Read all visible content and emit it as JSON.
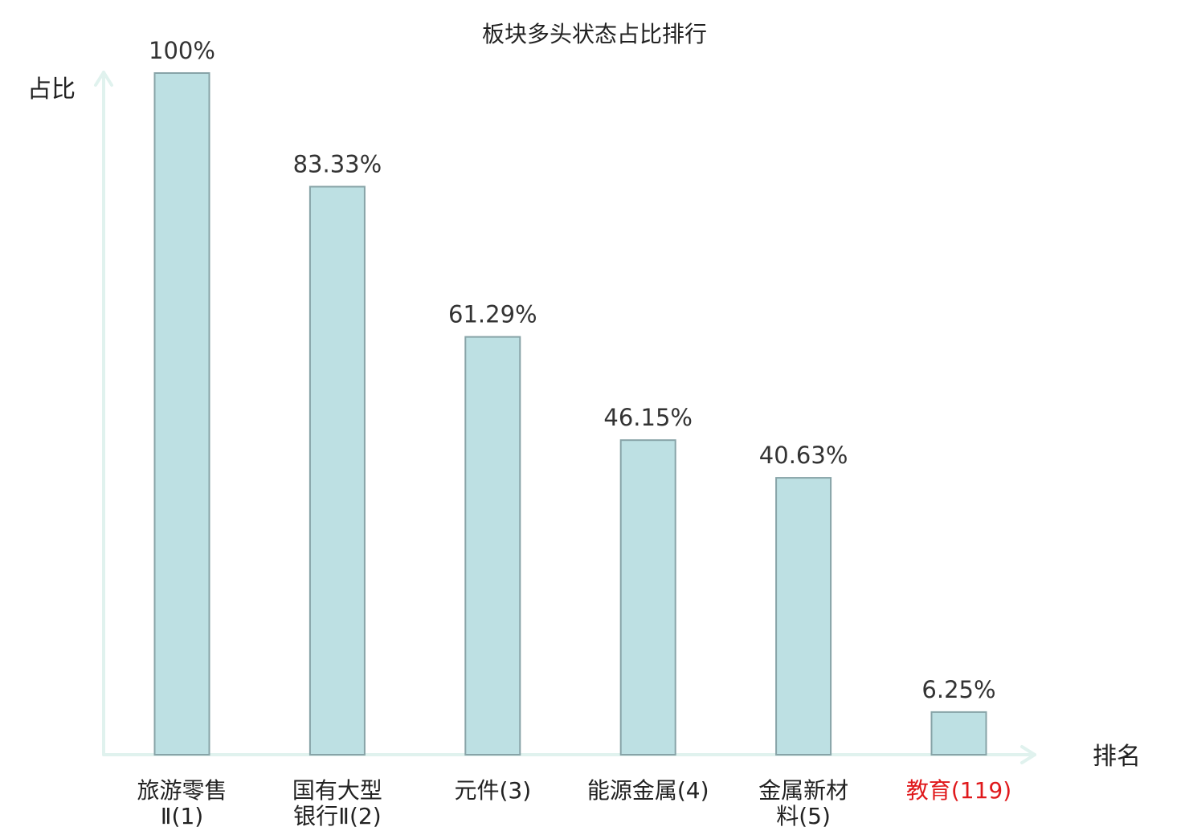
{
  "chart_data": {
    "type": "bar",
    "title": "板块多头状态占比排行",
    "ylabel": "占比",
    "xlabel": "排名",
    "ylim": [
      0,
      100
    ],
    "grid": false,
    "categories": [
      {
        "lines": [
          "旅游零售",
          "Ⅱ(1)"
        ],
        "highlight": false
      },
      {
        "lines": [
          "国有大型",
          "银行Ⅱ(2)"
        ],
        "highlight": false
      },
      {
        "lines": [
          "元件(3)"
        ],
        "highlight": false
      },
      {
        "lines": [
          "能源金属(4)"
        ],
        "highlight": false
      },
      {
        "lines": [
          "金属新材",
          "料(5)"
        ],
        "highlight": false
      },
      {
        "lines": [
          "教育(119)"
        ],
        "highlight": true
      }
    ],
    "values": [
      100,
      83.33,
      61.29,
      46.15,
      40.63,
      6.25
    ],
    "value_labels": [
      "100%",
      "83.33%",
      "61.29%",
      "46.15%",
      "40.63%",
      "6.25%"
    ],
    "colors": {
      "bar_fill": "#bde0e3",
      "bar_stroke": "#87a3a7",
      "axis": "#e0f2ee",
      "text": "#222222",
      "highlight_text": "#e0191c"
    }
  }
}
